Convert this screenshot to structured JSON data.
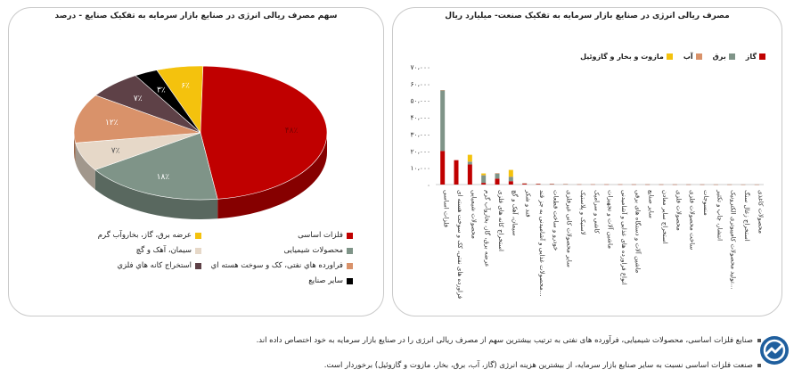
{
  "pie_title": "سهم مصرف ریالی انرژی در صنایع  بازار سرمایه به تفکیک صنایع - درصد",
  "bar_title": "مصرف ریالی انرژی در صنایع بازار سرمایه به تفکیک صنعت- میلیارد ریال",
  "chart_data": [
    {
      "type": "pie",
      "title": "سهم مصرف ریالی انرژی در صنایع  بازار سرمایه به تفکیک صنایع - درصد",
      "labels": [
        "فلزات اساسی",
        "محصولات شیمیایی",
        "سیمان، آهک و گچ",
        "فراورده هاي نفتی، کک و سوخت هسته اي",
        "استخراج کانه هاي فلزي",
        "سایر صنایع",
        "عرضه برق، گاز، بخاروآب گرم"
      ],
      "value_labels": [
        "۴۸٪",
        "۱۸٪",
        "۷٪",
        "۱۲٪",
        "۷٪",
        "۳٪",
        "۶٪"
      ],
      "values": [
        48,
        18,
        7,
        12,
        7,
        3,
        6
      ],
      "colors": [
        "#c00000",
        "#7f9488",
        "#e6d8c8",
        "#d9926a",
        "#5e4147",
        "#000000",
        "#f4c20d"
      ]
    },
    {
      "type": "bar",
      "stacked": true,
      "title": "مصرف ریالی انرژی در صنایع بازار سرمایه به تفکیک صنعت- میلیارد ریال",
      "ylim": [
        0,
        70000
      ],
      "yticks": [
        "۰",
        "۱۰،۰۰۰",
        "۲۰،۰۰۰",
        "۳۰،۰۰۰",
        "۴۰،۰۰۰",
        "۵۰،۰۰۰",
        "۶۰،۰۰۰",
        "۷۰،۰۰۰"
      ],
      "categories": [
        "فلزات اساسی",
        "فراورده های نفتی، کک و سوخت هسته ای",
        "محصولات شیمیایی",
        "عرضه برق، گاز، بخاروآب گرم",
        "استخراج کانه های فلزی",
        "سیمان، آهک و گچ",
        "قند و شکر",
        "محصولات غذایی و آشامیدنی به جز قند…",
        "خودرو و ساخت قطعات",
        "سایر محصولات کانی غیرفلزی",
        "لاستیک و پلاستیک",
        "کاشی و سرامیک",
        "ماشین آلات و تجهیزات",
        "انواع فراورده های غذایی و آشامیدنی",
        "ماشین آلات و دستگاه های برقی",
        "سایر صنایع",
        "استخراج سایر معادن",
        "محصولات فلزی",
        "ساخت محصولات فلزی",
        "منسوجات",
        "انتشار، چاپ و تکثیر",
        "تولید محصولات کامپیوتری الکترونیک…",
        "استخراج زغال سنگ",
        "محصولات کاغذی"
      ],
      "series": [
        {
          "name": "گاز",
          "color": "#c00000",
          "values": [
            20000,
            14500,
            12000,
            1000,
            3500,
            2000,
            500,
            300,
            200,
            150,
            100,
            100,
            80,
            80,
            60,
            50,
            40,
            40,
            30,
            30,
            20,
            20,
            10,
            10
          ]
        },
        {
          "name": "برق",
          "color": "#7f9488",
          "values": [
            36000,
            0,
            1500,
            4500,
            3000,
            2500,
            200,
            200,
            200,
            150,
            100,
            100,
            80,
            80,
            60,
            50,
            40,
            40,
            30,
            30,
            20,
            20,
            10,
            10
          ]
        },
        {
          "name": "آب",
          "color": "#d9926a",
          "values": [
            200,
            0,
            200,
            100,
            300,
            200,
            50,
            30,
            20,
            20,
            10,
            10,
            10,
            10,
            10,
            10,
            5,
            5,
            5,
            5,
            5,
            5,
            5,
            5
          ]
        },
        {
          "name": "مازوت و بخار و گازوئیل",
          "color": "#f4c20d",
          "values": [
            0,
            0,
            4000,
            1000,
            0,
            4000,
            0,
            0,
            0,
            0,
            0,
            0,
            0,
            0,
            0,
            0,
            0,
            0,
            0,
            0,
            0,
            0,
            0,
            0
          ]
        }
      ]
    }
  ],
  "notes": [
    "صنایع فلزات اساسی، محصولات شیمیایی، فرآورده های نفتی به ترتیب بیشترین سهم از مصرف ریالی انرژی را در صنایع بازار سرمایه به خود اختصاص داده اند.",
    "صنعت فلزات اساسی نسبت به سایر صنایع بازار سرمایه، از بیشترین هزینه انرژی (گاز، آب، برق، بخار، مازوت و گازوئیل) برخوردار است."
  ]
}
